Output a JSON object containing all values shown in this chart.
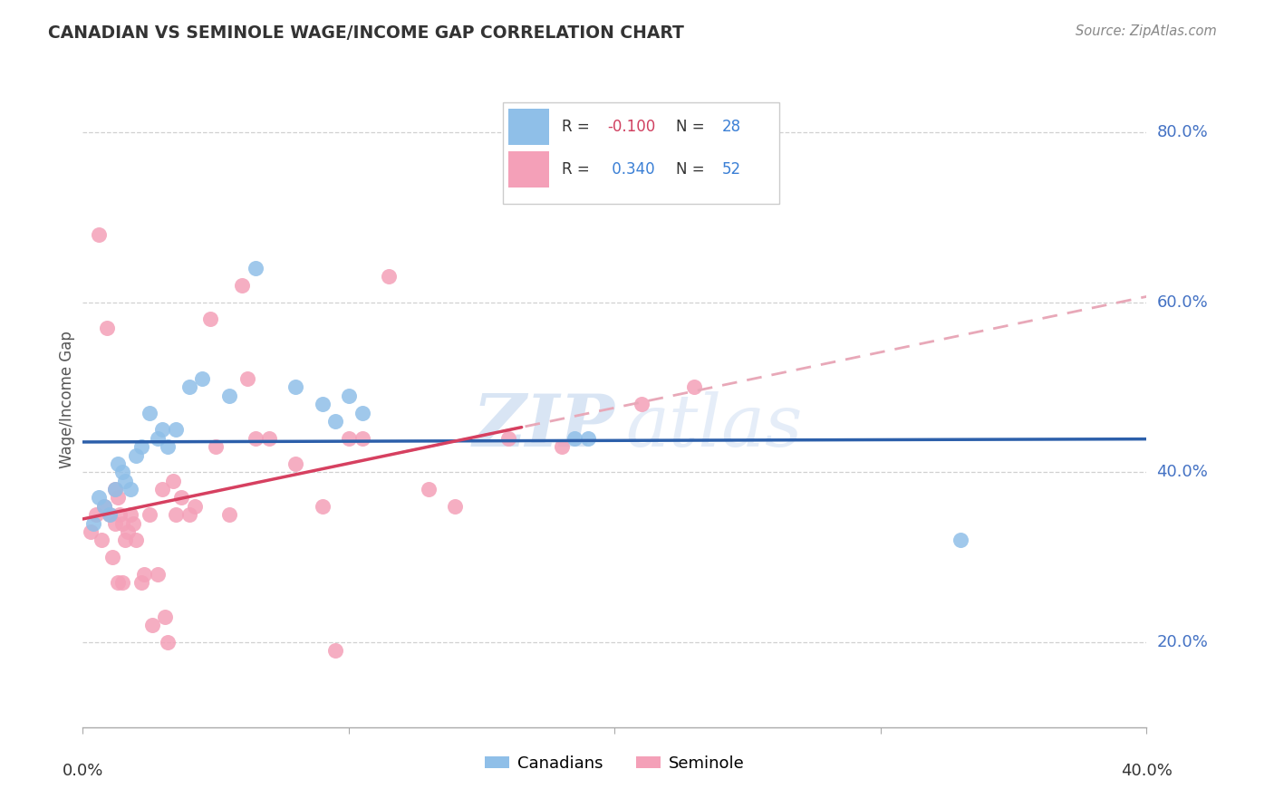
{
  "title": "CANADIAN VS SEMINOLE WAGE/INCOME GAP CORRELATION CHART",
  "source": "Source: ZipAtlas.com",
  "ylabel": "Wage/Income Gap",
  "xlim": [
    0.0,
    0.4
  ],
  "ylim": [
    0.1,
    0.87
  ],
  "yticks": [
    0.2,
    0.4,
    0.6,
    0.8
  ],
  "ytick_labels": [
    "20.0%",
    "40.0%",
    "60.0%",
    "80.0%"
  ],
  "canadian_color": "#8fbfe8",
  "seminole_color": "#f4a0b8",
  "trendline_canadian_color": "#2c5faa",
  "trendline_seminole_solid_color": "#d64060",
  "trendline_seminole_dashed_color": "#e8a8b8",
  "R_canadian": -0.1,
  "N_canadian": 28,
  "R_seminole": 0.34,
  "N_seminole": 52,
  "canadian_x": [
    0.004,
    0.006,
    0.008,
    0.01,
    0.012,
    0.013,
    0.015,
    0.016,
    0.018,
    0.02,
    0.022,
    0.025,
    0.028,
    0.03,
    0.032,
    0.035,
    0.04,
    0.045,
    0.055,
    0.065,
    0.08,
    0.09,
    0.095,
    0.1,
    0.105,
    0.185,
    0.19,
    0.33
  ],
  "canadian_y": [
    0.34,
    0.37,
    0.36,
    0.35,
    0.38,
    0.41,
    0.4,
    0.39,
    0.38,
    0.42,
    0.43,
    0.47,
    0.44,
    0.45,
    0.43,
    0.45,
    0.5,
    0.51,
    0.49,
    0.64,
    0.5,
    0.48,
    0.46,
    0.49,
    0.47,
    0.44,
    0.44,
    0.32
  ],
  "seminole_x": [
    0.003,
    0.005,
    0.006,
    0.007,
    0.008,
    0.009,
    0.01,
    0.011,
    0.012,
    0.012,
    0.013,
    0.013,
    0.014,
    0.015,
    0.015,
    0.016,
    0.017,
    0.018,
    0.019,
    0.02,
    0.022,
    0.023,
    0.025,
    0.026,
    0.028,
    0.03,
    0.031,
    0.032,
    0.034,
    0.035,
    0.037,
    0.04,
    0.042,
    0.048,
    0.05,
    0.055,
    0.06,
    0.062,
    0.065,
    0.07,
    0.08,
    0.09,
    0.095,
    0.1,
    0.105,
    0.115,
    0.13,
    0.14,
    0.16,
    0.18,
    0.21,
    0.23
  ],
  "seminole_y": [
    0.33,
    0.35,
    0.68,
    0.32,
    0.36,
    0.57,
    0.35,
    0.3,
    0.34,
    0.38,
    0.37,
    0.27,
    0.35,
    0.34,
    0.27,
    0.32,
    0.33,
    0.35,
    0.34,
    0.32,
    0.27,
    0.28,
    0.35,
    0.22,
    0.28,
    0.38,
    0.23,
    0.2,
    0.39,
    0.35,
    0.37,
    0.35,
    0.36,
    0.58,
    0.43,
    0.35,
    0.62,
    0.51,
    0.44,
    0.44,
    0.41,
    0.36,
    0.19,
    0.44,
    0.44,
    0.63,
    0.38,
    0.36,
    0.44,
    0.43,
    0.48,
    0.5
  ],
  "watermark_zip": "ZIP",
  "watermark_atlas": "atlas",
  "background_color": "#ffffff",
  "grid_color": "#d0d0d0",
  "legend_r_color": "#333333",
  "legend_n_color": "#3a7fd5"
}
